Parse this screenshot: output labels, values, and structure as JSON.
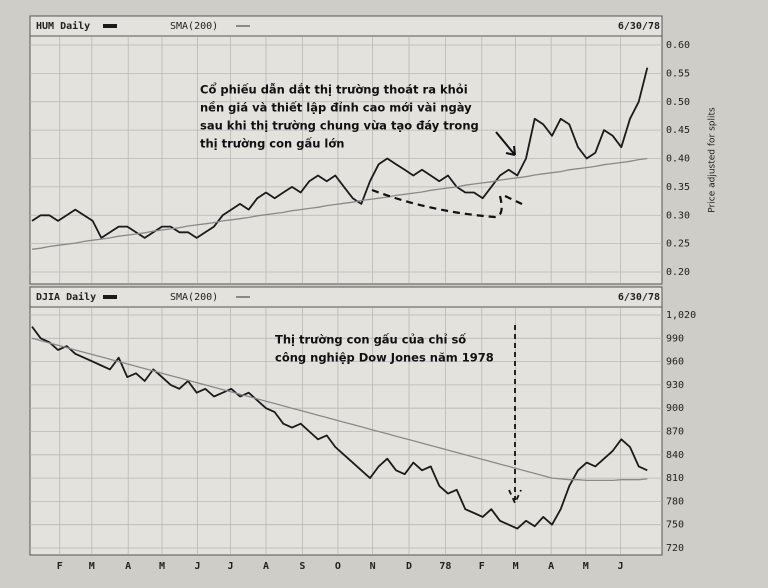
{
  "chart_data": [
    {
      "type": "line",
      "title": "HUM Daily",
      "subtitle": "SMA(200)",
      "date": "6/30/78",
      "y_label": "Price adjusted for splits",
      "annotations": [
        "Cổ phiếu dẫn dắt thị trường thoát ra khỏi",
        "nền giá và thiết lập đỉnh cao mới vài ngày",
        "sau khi thị trường chung vừa tạo đáy trong",
        "thị trường con gấu lớn"
      ],
      "xlim": [
        0,
        72
      ],
      "ylim": [
        0.2,
        0.6
      ],
      "yticks": [
        {
          "value": 0.6,
          "label": "0.60"
        },
        0.55,
        {
          "value": 0.5,
          "label": "0.50"
        },
        0.45,
        {
          "value": 0.4,
          "label": "0.40"
        },
        0.35,
        {
          "value": 0.3,
          "label": "0.30"
        },
        0.25,
        {
          "value": 0.2,
          "label": "0.20"
        }
      ],
      "grid": true,
      "series": [
        {
          "name": "HUM Daily",
          "color": "#1a1a1a",
          "values": [
            0.29,
            0.3,
            0.3,
            0.29,
            0.3,
            0.31,
            0.3,
            0.29,
            0.26,
            0.27,
            0.28,
            0.28,
            0.27,
            0.26,
            0.27,
            0.28,
            0.28,
            0.27,
            0.27,
            0.26,
            0.27,
            0.28,
            0.3,
            0.31,
            0.32,
            0.31,
            0.33,
            0.34,
            0.33,
            0.34,
            0.35,
            0.34,
            0.36,
            0.37,
            0.36,
            0.37,
            0.35,
            0.33,
            0.32,
            0.36,
            0.39,
            0.4,
            0.39,
            0.38,
            0.37,
            0.38,
            0.37,
            0.36,
            0.37,
            0.35,
            0.34,
            0.34,
            0.33,
            0.35,
            0.37,
            0.38,
            0.37,
            0.4,
            0.47,
            0.46,
            0.44,
            0.47,
            0.46,
            0.42,
            0.4,
            0.41,
            0.45,
            0.44,
            0.42,
            0.47,
            0.5,
            0.56
          ]
        },
        {
          "name": "SMA(200)",
          "color": "#8a8a8a",
          "values": [
            0.24,
            0.242,
            0.245,
            0.247,
            0.249,
            0.251,
            0.254,
            0.256,
            0.258,
            0.26,
            0.263,
            0.265,
            0.267,
            0.269,
            0.272,
            0.274,
            0.276,
            0.278,
            0.281,
            0.283,
            0.285,
            0.287,
            0.29,
            0.292,
            0.294,
            0.296,
            0.299,
            0.301,
            0.303,
            0.305,
            0.308,
            0.31,
            0.312,
            0.314,
            0.317,
            0.319,
            0.321,
            0.323,
            0.326,
            0.328,
            0.33,
            0.332,
            0.335,
            0.337,
            0.339,
            0.341,
            0.344,
            0.346,
            0.348,
            0.35,
            0.353,
            0.355,
            0.357,
            0.359,
            0.362,
            0.364,
            0.366,
            0.368,
            0.371,
            0.373,
            0.375,
            0.377,
            0.38,
            0.382,
            0.384,
            0.386,
            0.389,
            0.391,
            0.393,
            0.395,
            0.398,
            0.4
          ]
        }
      ]
    },
    {
      "type": "line",
      "title": "DJIA Daily",
      "subtitle": "SMA(200)",
      "date": "6/30/78",
      "annotations": [
        "Thị trường con gấu của chỉ số",
        "công nghiệp Dow Jones năm 1978"
      ],
      "xlim": [
        0,
        72
      ],
      "ylim": [
        720,
        1020
      ],
      "xticks": [
        {
          "value": 3.2,
          "label": "F"
        },
        {
          "value": 6.9,
          "label": "M"
        },
        {
          "value": 11.1,
          "label": "A"
        },
        {
          "value": 15,
          "label": "M"
        },
        {
          "value": 19.1,
          "label": "J"
        },
        {
          "value": 22.9,
          "label": "J"
        },
        {
          "value": 27,
          "label": "A"
        },
        {
          "value": 31.2,
          "label": "S"
        },
        {
          "value": 35.3,
          "label": "O"
        },
        {
          "value": 39.3,
          "label": "N"
        },
        {
          "value": 43.5,
          "label": "D"
        },
        {
          "value": 47.7,
          "label": "78"
        },
        {
          "value": 51.9,
          "label": "F"
        },
        {
          "value": 55.8,
          "label": "M"
        },
        {
          "value": 59.9,
          "label": "A"
        },
        {
          "value": 63.9,
          "label": "M"
        },
        {
          "value": 67.9,
          "label": "J"
        }
      ],
      "yticks": [
        {
          "value": 1020,
          "label": "1,020"
        },
        990,
        960,
        930,
        900,
        870,
        840,
        810,
        780,
        750,
        720
      ],
      "grid": true,
      "series": [
        {
          "name": "DJIA Daily",
          "color": "#1a1a1a",
          "values": [
            1005,
            990,
            985,
            975,
            980,
            970,
            965,
            960,
            955,
            950,
            965,
            940,
            945,
            935,
            950,
            940,
            930,
            925,
            935,
            920,
            925,
            915,
            920,
            925,
            915,
            920,
            910,
            900,
            895,
            880,
            875,
            880,
            870,
            860,
            865,
            850,
            840,
            830,
            820,
            810,
            825,
            835,
            820,
            815,
            830,
            820,
            825,
            800,
            790,
            795,
            770,
            765,
            760,
            770,
            755,
            750,
            745,
            755,
            748,
            760,
            750,
            770,
            800,
            820,
            830,
            825,
            835,
            845,
            860,
            850,
            825,
            820
          ]
        },
        {
          "name": "SMA(200)",
          "color": "#8a8a8a",
          "values": [
            990,
            987,
            984,
            981,
            978,
            975,
            972,
            969,
            966,
            963,
            960,
            957,
            954,
            951,
            948,
            945,
            942,
            939,
            936,
            933,
            930,
            927,
            924,
            921,
            918,
            915,
            912,
            909,
            906,
            903,
            900,
            897,
            894,
            891,
            888,
            885,
            882,
            879,
            876,
            873,
            870,
            867,
            864,
            861,
            858,
            855,
            852,
            849,
            846,
            843,
            840,
            837,
            834,
            831,
            828,
            825,
            822,
            819,
            816,
            813,
            810,
            809,
            808,
            808,
            807,
            807,
            807,
            807,
            808,
            808,
            808,
            809
          ]
        }
      ]
    }
  ]
}
